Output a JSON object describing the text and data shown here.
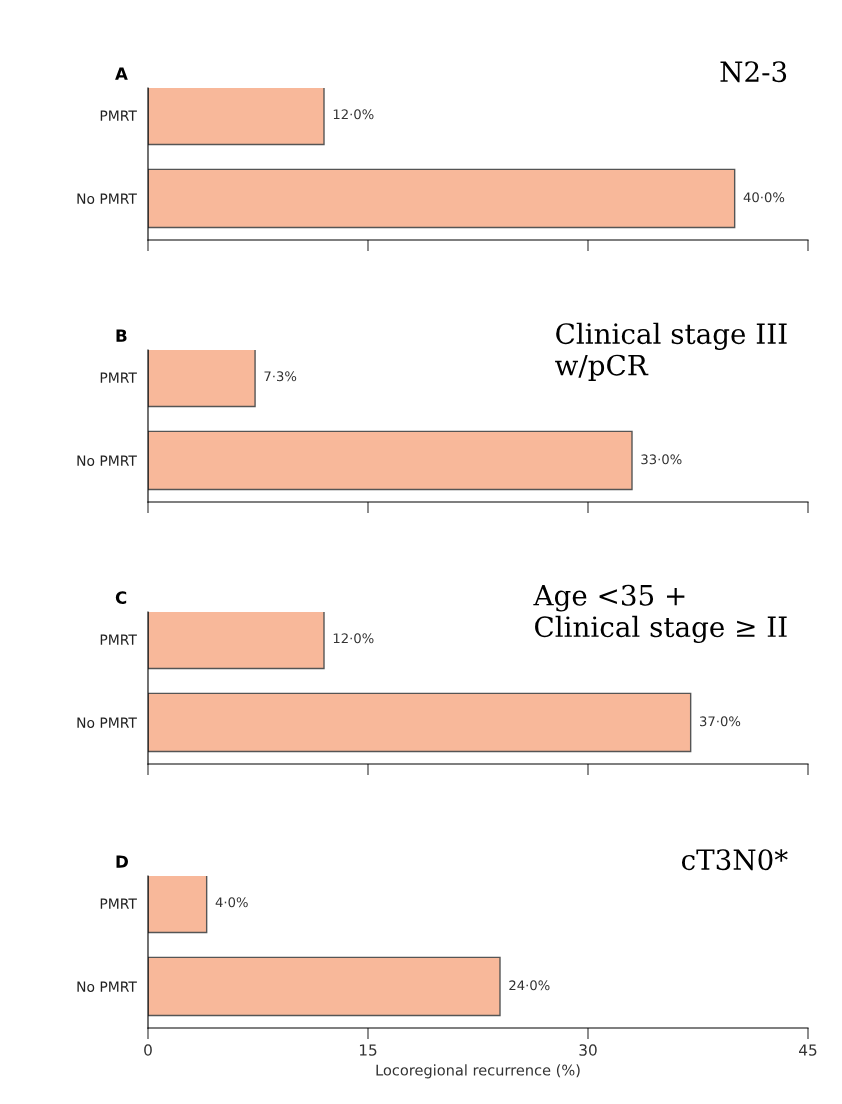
{
  "chart_data": [
    {
      "type": "bar",
      "orientation": "horizontal",
      "title": "A",
      "categories": [
        "PMRT",
        "No PMRT"
      ],
      "values": [
        12.0,
        40.0
      ],
      "value_labels": [
        "12·0%",
        "40·0%"
      ],
      "color": "#f8b89a",
      "xlim": [
        0,
        45
      ],
      "xticks": [
        0,
        15,
        30,
        45
      ],
      "tick_labels": "y",
      "grid": false,
      "legend": false,
      "annotations": [
        "N2-3"
      ]
    },
    {
      "type": "bar",
      "orientation": "horizontal",
      "title": "B",
      "categories": [
        "PMRT",
        "No PMRT"
      ],
      "values": [
        7.3,
        33.0
      ],
      "value_labels": [
        "7·3%",
        "33·0%"
      ],
      "color": "#f8b89a",
      "xlim": [
        0,
        45
      ],
      "xticks": [
        0,
        15,
        30,
        45
      ],
      "tick_labels": "y",
      "grid": false,
      "legend": false,
      "annotations": [
        "Clinical stage III\nw/pCR"
      ]
    },
    {
      "type": "bar",
      "orientation": "horizontal",
      "title": "C",
      "categories": [
        "PMRT",
        "No PMRT"
      ],
      "values": [
        12.0,
        37.0
      ],
      "value_labels": [
        "12·0%",
        "37·0%"
      ],
      "color": "#f8b89a",
      "xlim": [
        0,
        45
      ],
      "xticks": [
        0,
        15,
        30,
        45
      ],
      "tick_labels": "y",
      "grid": false,
      "legend": false,
      "annotations": [
        "Age <35 +\nClinical stage ≥ II"
      ]
    },
    {
      "type": "bar",
      "orientation": "horizontal",
      "title": "D",
      "categories": [
        "PMRT",
        "No PMRT"
      ],
      "values": [
        4.0,
        24.0
      ],
      "value_labels": [
        "4·0%",
        "24·0%"
      ],
      "color": "#f8b89a",
      "xlim": [
        0,
        45
      ],
      "xticks": [
        0,
        15,
        30,
        45
      ],
      "xlabel": "Locoregional recurrence (%)",
      "grid": false,
      "legend": false,
      "annotations": [
        "cT3N0*"
      ]
    }
  ]
}
